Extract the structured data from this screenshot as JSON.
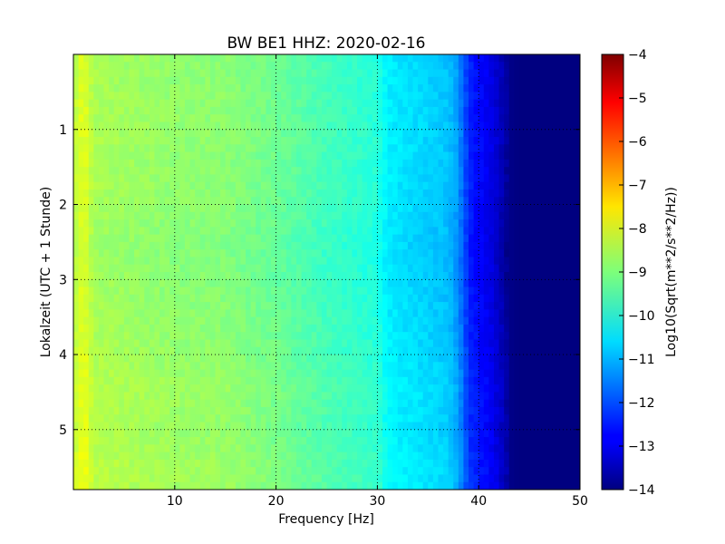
{
  "chart_data": {
    "type": "heatmap",
    "title": "BW BE1 HHZ: 2020-02-16",
    "xlabel": "Frequency [Hz]",
    "ylabel": "Lokalzeit (UTC + 1 Stunde)",
    "xlim": [
      0,
      50
    ],
    "ylim": [
      0,
      5.8
    ],
    "y_inverted": true,
    "x_ticks": [
      10,
      20,
      30,
      40,
      50
    ],
    "y_ticks": [
      1,
      2,
      3,
      4,
      5
    ],
    "grid": true,
    "grid_style": "dotted",
    "colormap": "jet",
    "colorbar": {
      "label": "Log10(Sqrt(m**2/s**2/Hz))",
      "min": -14,
      "max": -4,
      "ticks": [
        -14,
        -13,
        -12,
        -11,
        -10,
        -9,
        -8,
        -7,
        -6,
        -5,
        -4
      ]
    },
    "frequency_profile": {
      "frequency_hz": [
        0,
        1,
        2,
        5,
        10,
        15,
        20,
        25,
        30,
        31,
        32,
        35,
        37,
        38,
        39,
        40,
        41,
        42,
        43,
        44,
        50
      ],
      "log10_psd": [
        -8.5,
        -8.0,
        -8.6,
        -8.7,
        -8.85,
        -8.9,
        -9.2,
        -9.6,
        -9.9,
        -10.4,
        -10.5,
        -10.7,
        -10.85,
        -11.3,
        -12.4,
        -12.7,
        -12.9,
        -13.3,
        -13.9,
        -14.0,
        -14.0
      ]
    },
    "time_variation": {
      "hour": [
        0,
        1,
        2,
        2.6,
        3,
        3.5,
        4,
        4.5,
        5,
        5.5,
        5.8
      ],
      "offset": [
        0,
        0.05,
        0,
        -0.1,
        -0.05,
        0,
        0.05,
        0.15,
        0.1,
        0.2,
        0.2
      ]
    }
  }
}
